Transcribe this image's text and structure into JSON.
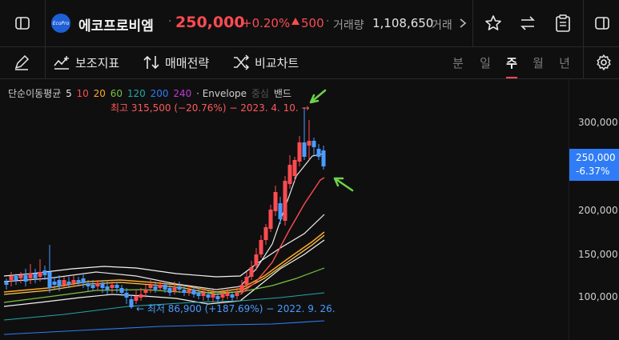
{
  "header": {
    "logo_text": "EcoPro",
    "stock_name": "에코프로비엠",
    "price": "250,000",
    "change_pct": "+0.20%",
    "change_abs": "500",
    "volume_label": "거래량",
    "volume": "1,108,650",
    "volume_extra": "거래",
    "icons": [
      "sidebar-left-icon",
      "chevron-right-icon",
      "star-icon",
      "swap-icon",
      "clipboard-icon",
      "sidebar-right-icon"
    ]
  },
  "toolbar": {
    "draw_icon": "pencil-icon",
    "indicators_label": "보조지표",
    "strategy_label": "매매전략",
    "compare_label": "비교차트",
    "periods": [
      "분",
      "일",
      "주",
      "월",
      "년"
    ],
    "active_period": "주",
    "settings_icon": "gear-icon"
  },
  "legend": {
    "title": "단순이동평균",
    "ma": [
      {
        "label": "5",
        "color": "#e6e6e6"
      },
      {
        "label": "10",
        "color": "#ff4b50"
      },
      {
        "label": "20",
        "color": "#ffa726"
      },
      {
        "label": "60",
        "color": "#7cc242"
      },
      {
        "label": "120",
        "color": "#26a6a6"
      },
      {
        "label": "200",
        "color": "#2f7cf6"
      },
      {
        "label": "240",
        "color": "#c13ad6"
      }
    ],
    "envelope": "· Envelope",
    "envelope_mid": "중심",
    "band": "밴드"
  },
  "chart_data": {
    "type": "candlestick",
    "high_label": "최고 315,500 (−20.76%) − 2023. 4. 10. →",
    "low_label": "← 최저 86,900 (+187.69%) − 2022. 9. 26.",
    "y_ticks": [
      "300,000",
      "200,000",
      "150,000",
      "100,000"
    ],
    "current_price": "250,000",
    "current_change": "-6.37%",
    "colors": {
      "up": "#ff4b50",
      "down": "#4a9cff"
    }
  }
}
